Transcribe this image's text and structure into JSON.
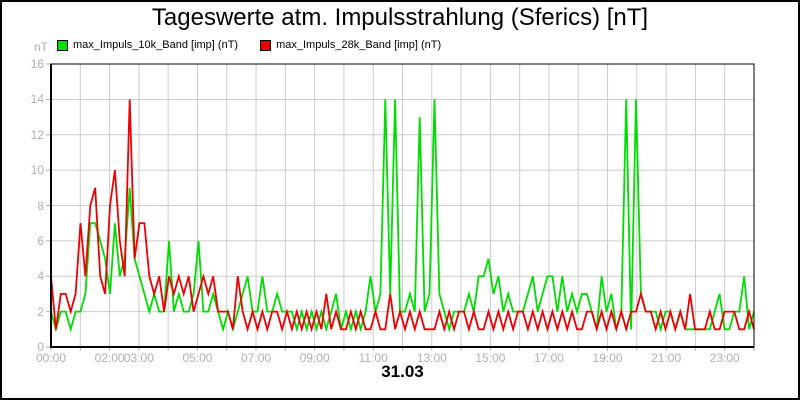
{
  "title": "Tageswerte atm. Impulsstrahlung (Sferics) [nT]",
  "chart_data": {
    "type": "line",
    "title": "Tageswerte atm. Impulsstrahlung (Sferics) [nT]",
    "ylabel_unit": "nT",
    "date_label": "31.03",
    "ylim": [
      0,
      16
    ],
    "y_ticks": [
      0,
      2,
      4,
      6,
      8,
      10,
      12,
      14,
      16
    ],
    "x_hours": 24,
    "x_step_minutes": 10,
    "grid": "on",
    "legend_position": "top-left",
    "grid_color": "#cccccc",
    "tick_label_color": "#b0b0b0",
    "x_tick_labels": [
      {
        "label": "00:00",
        "hour": 0
      },
      {
        "label": "02:00",
        "hour": 2
      },
      {
        "label": "03:00",
        "hour": 3
      },
      {
        "label": "05:00",
        "hour": 5
      },
      {
        "label": "07:00",
        "hour": 7
      },
      {
        "label": "09:00",
        "hour": 9
      },
      {
        "label": "11:00",
        "hour": 11
      },
      {
        "label": "13:00",
        "hour": 13
      },
      {
        "label": "15:00",
        "hour": 15
      },
      {
        "label": "17:00",
        "hour": 17
      },
      {
        "label": "19:00",
        "hour": 19
      },
      {
        "label": "21:00",
        "hour": 21
      },
      {
        "label": "23:00",
        "hour": 23
      }
    ],
    "series": [
      {
        "name": "max_Impuls_10k_Band [imp] (nT)",
        "color": "#00dd00",
        "values": [
          2,
          1,
          2,
          2,
          1,
          2,
          2,
          3,
          7,
          7,
          6,
          5,
          3,
          7,
          4,
          5,
          9,
          5,
          4,
          3,
          2,
          3,
          2,
          2,
          6,
          2,
          3,
          2,
          2,
          3,
          6,
          2,
          2,
          3,
          2,
          1,
          2,
          1,
          2,
          3,
          4,
          2,
          2,
          4,
          2,
          2,
          3,
          2,
          2,
          2,
          1,
          2,
          1,
          2,
          1,
          2,
          1,
          2,
          3,
          1,
          2,
          1,
          2,
          1,
          2,
          4,
          2,
          3,
          14,
          3,
          14,
          2,
          2,
          3,
          2,
          13,
          2,
          3,
          14,
          3,
          2,
          1,
          2,
          2,
          2,
          3,
          2,
          4,
          4,
          5,
          3,
          4,
          2,
          3,
          2,
          2,
          2,
          3,
          4,
          2,
          3,
          4,
          4,
          2,
          4,
          2,
          3,
          2,
          3,
          3,
          2,
          1,
          4,
          2,
          3,
          1,
          2,
          14,
          1,
          14,
          3,
          2,
          2,
          2,
          1,
          2,
          2,
          1,
          2,
          1,
          1,
          1,
          1,
          1,
          1,
          2,
          3,
          1,
          1,
          2,
          2,
          4,
          1,
          2
        ]
      },
      {
        "name": "max_Impuls_28k_Band [imp] (nT)",
        "color": "#ee0000",
        "values": [
          4,
          1,
          3,
          3,
          2,
          3,
          7,
          4,
          8,
          9,
          4,
          3,
          8,
          10,
          6,
          4,
          14,
          5,
          7,
          7,
          4,
          3,
          4,
          2,
          4,
          3,
          4,
          3,
          4,
          2,
          3,
          4,
          3,
          4,
          2,
          2,
          2,
          1,
          4,
          2,
          1,
          2,
          1,
          2,
          1,
          2,
          2,
          1,
          2,
          1,
          2,
          1,
          2,
          1,
          2,
          1,
          3,
          1,
          2,
          1,
          1,
          2,
          1,
          2,
          1,
          1,
          2,
          1,
          1,
          3,
          1,
          2,
          1,
          2,
          1,
          2,
          1,
          1,
          1,
          2,
          1,
          2,
          1,
          2,
          2,
          1,
          2,
          1,
          1,
          2,
          1,
          2,
          1,
          2,
          1,
          2,
          2,
          1,
          2,
          1,
          2,
          1,
          2,
          1,
          2,
          1,
          2,
          1,
          1,
          2,
          2,
          1,
          2,
          1,
          2,
          1,
          2,
          1,
          2,
          2,
          3,
          2,
          2,
          1,
          2,
          1,
          2,
          1,
          2,
          1,
          3,
          1,
          1,
          1,
          2,
          1,
          1,
          2,
          2,
          2,
          1,
          1,
          2,
          1
        ]
      }
    ]
  }
}
